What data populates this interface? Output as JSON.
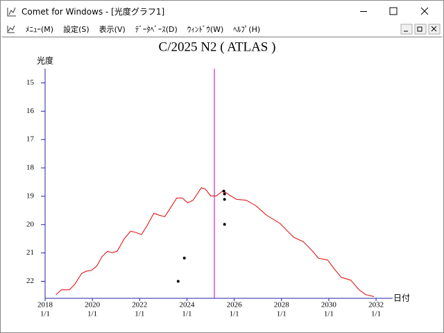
{
  "window": {
    "title": "Comet for Windows - [光度グラフ1]"
  },
  "menu": [
    "ﾒﾆｭｰ(M)",
    "設定(S)",
    "表示(V)",
    "ﾃﾞｰﾀﾍﾞｰｽ(D)",
    "ｳｨﾝﾄﾞｳ(W)",
    "ﾍﾙﾌﾟ(H)"
  ],
  "chart_data": {
    "type": "line",
    "title": "C/2025 N2 ( ATLAS )",
    "y_label": "光度",
    "x_label": "日付",
    "xlim": [
      2018,
      2032.3
    ],
    "ylim": [
      22.6,
      14.5
    ],
    "yticks": [
      15,
      16,
      17,
      18,
      19,
      20,
      21,
      22
    ],
    "xticks": [
      {
        "value": 2018,
        "label": [
          "2018",
          "1/1"
        ]
      },
      {
        "value": 2020,
        "label": [
          "2020",
          "1/1"
        ]
      },
      {
        "value": 2022,
        "label": [
          "2022",
          "1/1"
        ]
      },
      {
        "value": 2024,
        "label": [
          "2024",
          "1/1"
        ]
      },
      {
        "value": 2026,
        "label": [
          "2026",
          "1/1"
        ]
      },
      {
        "value": 2028,
        "label": [
          "2028",
          "1/1"
        ]
      },
      {
        "value": 2030,
        "label": [
          "2030",
          "1/1"
        ]
      },
      {
        "value": 2032,
        "label": [
          "2032",
          "1/1"
        ]
      }
    ],
    "marker_x": 2025.16,
    "marker_color": "#c000c0",
    "axis_color": "#2020a0",
    "series": [
      {
        "type": "line",
        "color": "#e00000",
        "x": [
          2018.46,
          2018.69,
          2019.03,
          2019.26,
          2019.55,
          2019.75,
          2019.95,
          2020.18,
          2020.41,
          2020.64,
          2020.82,
          2021.05,
          2021.33,
          2021.62,
          2021.85,
          2022.08,
          2022.31,
          2022.6,
          2022.83,
          2023.06,
          2023.29,
          2023.57,
          2023.8,
          2024.03,
          2024.26,
          2024.61,
          2024.78,
          2025.01,
          2025.24,
          2025.53,
          2025.82,
          2026.1,
          2026.51,
          2026.91,
          2027.37,
          2027.94,
          2028.23,
          2028.52,
          2028.92,
          2029.32,
          2029.55,
          2029.95,
          2030.24,
          2030.53,
          2030.93,
          2031.28,
          2031.56,
          2031.91
        ],
        "values": [
          22.47,
          22.3,
          22.3,
          22.1,
          21.72,
          21.64,
          21.62,
          21.47,
          21.13,
          20.94,
          20.99,
          20.94,
          20.52,
          20.23,
          20.28,
          20.35,
          20.04,
          19.6,
          19.67,
          19.72,
          19.43,
          19.06,
          19.06,
          19.23,
          19.14,
          18.7,
          18.75,
          18.99,
          18.99,
          18.8,
          18.97,
          19.11,
          19.14,
          19.33,
          19.67,
          19.96,
          20.21,
          20.45,
          20.6,
          20.94,
          21.18,
          21.25,
          21.57,
          21.86,
          21.96,
          22.3,
          22.47,
          22.54
        ]
      },
      {
        "type": "scatter",
        "color": "#000000",
        "x": [
          2023.63,
          2023.89,
          2025.56,
          2025.59,
          2025.59,
          2025.59
        ],
        "values": [
          22.0,
          21.18,
          18.82,
          18.92,
          19.11,
          19.99
        ]
      }
    ]
  }
}
